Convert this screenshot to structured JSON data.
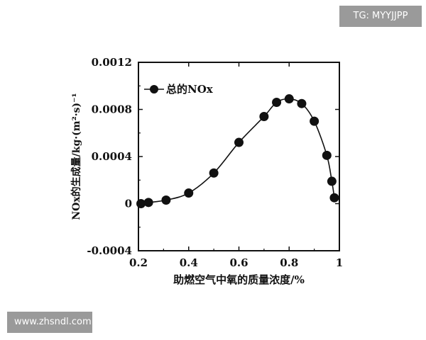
{
  "watermarks": {
    "top_right": "TG: MYYJJPP",
    "bottom_left": "www.zhsndl.com"
  },
  "chart_data": {
    "type": "line",
    "xlabel": "助燃空气中氧的质量浓度/%",
    "ylabel": "NOx的生成量/kg·(m²·s)⁻¹",
    "xlim": [
      0.2,
      1.0
    ],
    "ylim": [
      -0.0004,
      0.0012
    ],
    "x_ticks": [
      "0.2",
      "0.4",
      "0.6",
      "0.8",
      "1"
    ],
    "y_ticks": [
      "-0.0004",
      "0",
      "0.0004",
      "0.0008",
      "0.0012"
    ],
    "grid": false,
    "legend_position": "top-left",
    "series": [
      {
        "name": "总的NOx",
        "marker": "filled-circle",
        "color": "#111111",
        "x": [
          0.21,
          0.24,
          0.31,
          0.4,
          0.5,
          0.6,
          0.7,
          0.75,
          0.8,
          0.85,
          0.9,
          0.95,
          0.97,
          0.98
        ],
        "y": [
          0.0,
          1e-05,
          3e-05,
          9e-05,
          0.00026,
          0.00052,
          0.00074,
          0.00086,
          0.00089,
          0.00085,
          0.0007,
          0.00041,
          0.00019,
          5e-05
        ]
      }
    ]
  }
}
